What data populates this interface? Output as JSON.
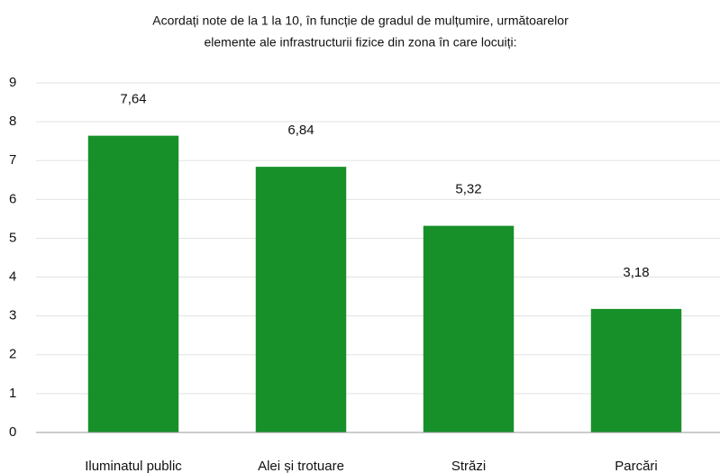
{
  "chart_data": {
    "type": "bar",
    "title": [
      "Acordați note de la 1 la 10, în funcție de gradul de mulțumire, următoarelor",
      "elemente ale infrastructurii fizice din zona în care locuiți:"
    ],
    "categories": [
      "Iluminatul public",
      "Alei și trotuare",
      "Străzi",
      "Parcări"
    ],
    "values": [
      7.64,
      6.84,
      5.32,
      3.18
    ],
    "value_labels": [
      "7,64",
      "6,84",
      "5,32",
      "3,18"
    ],
    "color": "#17902a",
    "ylim": [
      0,
      9
    ],
    "yticks": [
      0,
      1,
      2,
      3,
      4,
      5,
      6,
      7,
      8,
      9
    ],
    "grid": true
  }
}
